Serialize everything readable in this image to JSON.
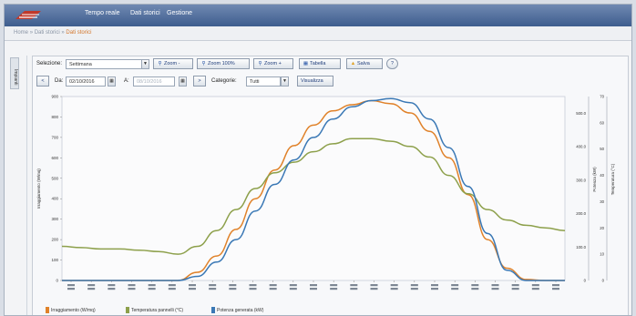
{
  "app": {
    "menu": [
      "Tempo reale",
      "Dati storici",
      "Gestione"
    ],
    "breadcrumb": [
      "Home",
      "Dati storici",
      "Dati storici"
    ]
  },
  "sidebar": {
    "tab_label": "Impianti"
  },
  "toolbar": {
    "selection_label": "Selezione:",
    "selection_value": "Settimana",
    "zoom_in": "Zoom -",
    "zoom_100": "Zoom 100%",
    "zoom_out": "Zoom +",
    "table_label": "Tabella",
    "save_label": "Salva",
    "prev_label": "<",
    "from_label": "Da:",
    "from_value": "02/10/2016",
    "to_label": "A:",
    "to_value": "08/10/2016",
    "next_label": ">",
    "category_label": "Categorie:",
    "category_value": "Tutti",
    "view_label": "Visualizza"
  },
  "colors": {
    "irradiance": "#e0822a",
    "temperature": "#8da04b",
    "power": "#3a78b5",
    "topbar": "#4d6b9b"
  },
  "chart_data": {
    "type": "line",
    "ylabel_left": "Irraggiamento (W/mq)",
    "ylabel_right1": "Potenza (kW)",
    "ylabel_right2": "Temperatura (°C)",
    "ylim": [
      0,
      900
    ],
    "y_ticks": [
      0,
      100,
      200,
      300,
      400,
      500,
      600,
      700,
      800,
      900
    ],
    "y2_ticks": [
      0,
      100.0,
      200.0,
      300.0,
      400.0,
      500.0
    ],
    "y3_ticks": [
      0,
      10,
      20,
      30,
      40,
      50,
      60,
      70
    ],
    "x_tick_count": 25,
    "series": [
      {
        "name": "Irraggiamento (W/mq)",
        "values": [
          [
            0,
            0
          ],
          [
            6,
            0
          ],
          [
            7,
            40
          ],
          [
            8,
            120
          ],
          [
            9,
            250
          ],
          [
            10,
            400
          ],
          [
            11,
            540
          ],
          [
            12,
            660
          ],
          [
            13,
            760
          ],
          [
            14,
            830
          ],
          [
            15,
            860
          ],
          [
            16,
            880
          ],
          [
            17,
            865
          ],
          [
            18,
            820
          ],
          [
            19,
            730
          ],
          [
            20,
            600
          ],
          [
            21,
            420
          ],
          [
            22,
            200
          ],
          [
            23,
            60
          ],
          [
            24,
            5
          ],
          [
            25,
            0
          ],
          [
            26,
            0
          ]
        ]
      },
      {
        "name": "Temperatura pannelli (°C)",
        "values": [
          [
            0,
            13
          ],
          [
            1,
            12.5
          ],
          [
            2,
            12
          ],
          [
            3,
            12
          ],
          [
            4,
            11.5
          ],
          [
            5,
            11
          ],
          [
            6,
            10
          ],
          [
            7,
            13
          ],
          [
            8,
            19
          ],
          [
            9,
            27
          ],
          [
            10,
            35
          ],
          [
            11,
            41
          ],
          [
            12,
            45
          ],
          [
            13,
            49
          ],
          [
            14,
            52
          ],
          [
            15,
            54
          ],
          [
            16,
            54
          ],
          [
            17,
            53
          ],
          [
            18,
            51
          ],
          [
            19,
            47
          ],
          [
            20,
            40
          ],
          [
            21,
            33
          ],
          [
            22,
            27
          ],
          [
            23,
            23
          ],
          [
            24,
            21
          ],
          [
            25,
            20
          ],
          [
            26,
            19
          ]
        ]
      },
      {
        "name": "Potenza generata (kW)",
        "values": [
          [
            0,
            0
          ],
          [
            6,
            0
          ],
          [
            7,
            20
          ],
          [
            8,
            90
          ],
          [
            9,
            200
          ],
          [
            10,
            340
          ],
          [
            11,
            470
          ],
          [
            12,
            590
          ],
          [
            13,
            700
          ],
          [
            14,
            790
          ],
          [
            15,
            850
          ],
          [
            16,
            880
          ],
          [
            17,
            890
          ],
          [
            18,
            870
          ],
          [
            19,
            790
          ],
          [
            20,
            650
          ],
          [
            21,
            460
          ],
          [
            22,
            230
          ],
          [
            23,
            50
          ],
          [
            24,
            0
          ],
          [
            25,
            0
          ],
          [
            26,
            0
          ]
        ]
      }
    ]
  }
}
